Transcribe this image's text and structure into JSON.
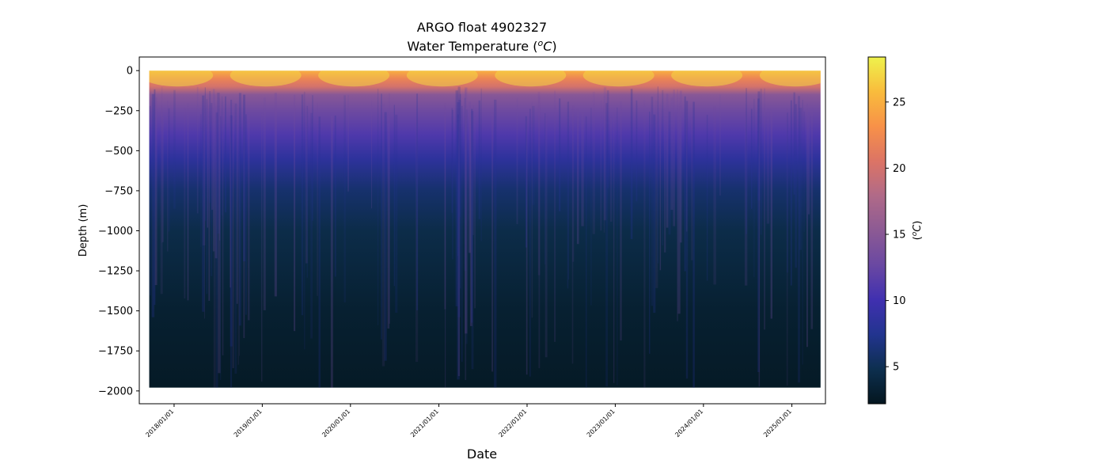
{
  "chart_data": {
    "type": "heatmap",
    "title": "ARGO float 4902327",
    "subtitle": "Water Temperature (ᵒC)",
    "subtitle_main": "Water Temperature (",
    "subtitle_unit_sup": "o",
    "subtitle_unit_main": "C",
    "subtitle_close": ")",
    "xlabel": "Date",
    "ylabel": "Depth (m)",
    "x_range": [
      "2017-08-10",
      "2025-05-20"
    ],
    "ylim": [
      -2080,
      85
    ],
    "data_depth_range": [
      -1980,
      0
    ],
    "x_ticks": [
      {
        "date": "2018-01-01",
        "label": "2018/01/01"
      },
      {
        "date": "2019-01-01",
        "label": "2019/01/01"
      },
      {
        "date": "2020-01-01",
        "label": "2020/01/01"
      },
      {
        "date": "2021-01-01",
        "label": "2021/01/01"
      },
      {
        "date": "2022-01-01",
        "label": "2022/01/01"
      },
      {
        "date": "2023-01-01",
        "label": "2023/01/01"
      },
      {
        "date": "2024-01-01",
        "label": "2024/01/01"
      },
      {
        "date": "2025-01-01",
        "label": "2025/01/01"
      }
    ],
    "data_time_range": [
      "2017-09-20",
      "2025-04-30"
    ],
    "y_ticks": [
      0,
      -250,
      -500,
      -750,
      -1000,
      -1250,
      -1500,
      -1750,
      -2000
    ],
    "temperature_profile": [
      {
        "depth": 0,
        "temp": 25
      },
      {
        "depth": -50,
        "temp": 22
      },
      {
        "depth": -100,
        "temp": 20
      },
      {
        "depth": -150,
        "temp": 15
      },
      {
        "depth": -250,
        "temp": 13
      },
      {
        "depth": -400,
        "temp": 11
      },
      {
        "depth": -550,
        "temp": 8.5
      },
      {
        "depth": -750,
        "temp": 6
      },
      {
        "depth": -1000,
        "temp": 4.5
      },
      {
        "depth": -1500,
        "temp": 3.2
      },
      {
        "depth": -2000,
        "temp": 2.6
      }
    ],
    "colorbar": {
      "label": "(ᵒC)",
      "label_sup": "o",
      "label_main": "C",
      "range": [
        2.2,
        28.4
      ],
      "ticks": [
        5,
        10,
        15,
        20,
        25
      ],
      "colormap": "thermal",
      "stops": [
        {
          "t": 0.0,
          "color": "#04161f"
        },
        {
          "t": 0.1,
          "color": "#0d2f4f"
        },
        {
          "t": 0.2,
          "color": "#22348f"
        },
        {
          "t": 0.3,
          "color": "#4030b0"
        },
        {
          "t": 0.4,
          "color": "#6a48a2"
        },
        {
          "t": 0.5,
          "color": "#8c5a94"
        },
        {
          "t": 0.6,
          "color": "#b06a88"
        },
        {
          "t": 0.7,
          "color": "#dc7465"
        },
        {
          "t": 0.8,
          "color": "#f89148"
        },
        {
          "t": 0.9,
          "color": "#f9bc3c"
        },
        {
          "t": 1.0,
          "color": "#eef24c"
        }
      ]
    }
  }
}
